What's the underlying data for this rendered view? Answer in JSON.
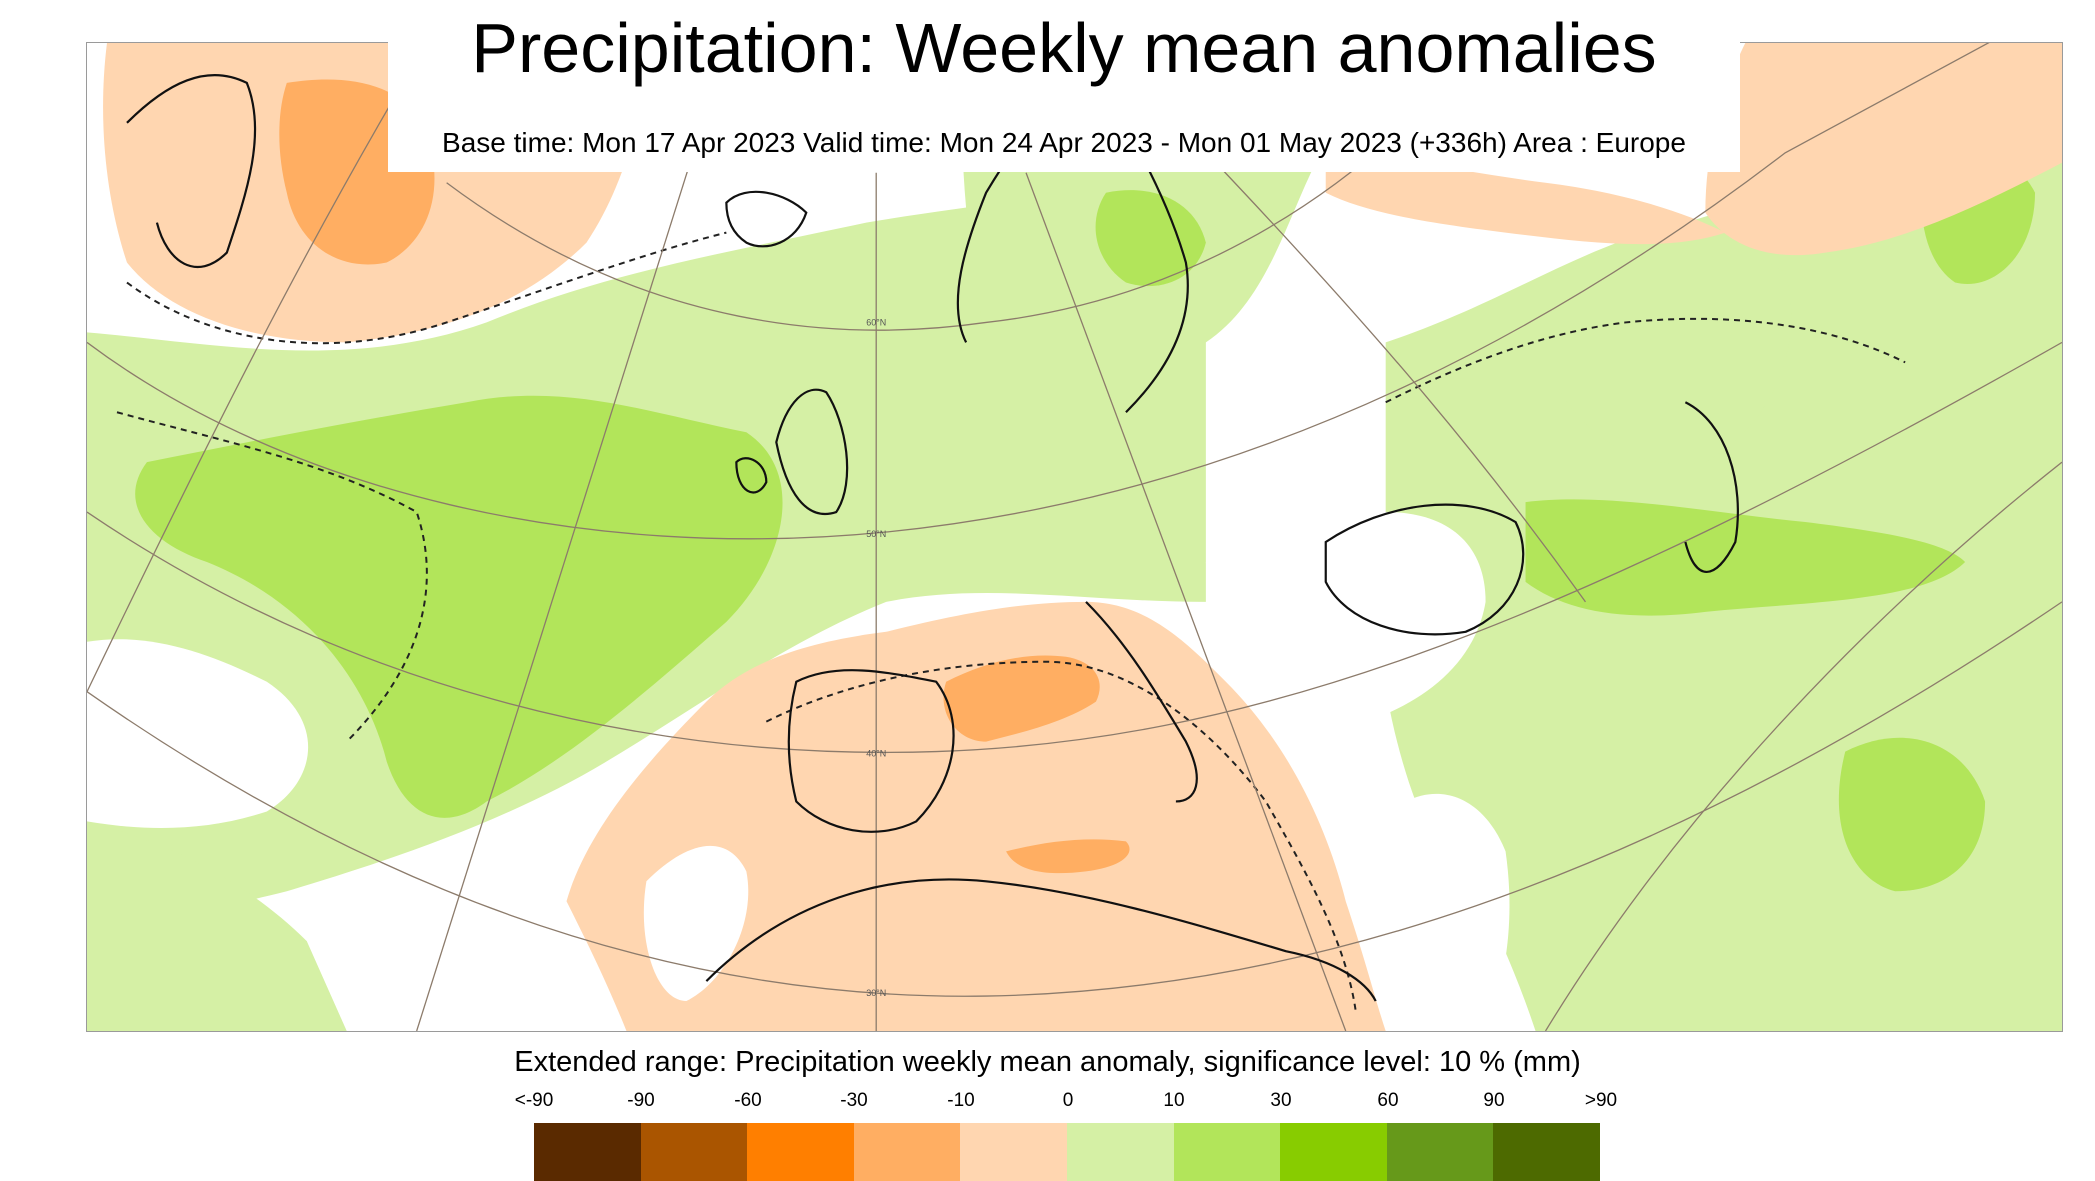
{
  "title": "Precipitation: Weekly mean anomalies",
  "subtitle": "Base time: Mon 17 Apr 2023 Valid time: Mon 24 Apr 2023 - Mon 01 May 2023 (+336h) Area : Europe",
  "legend": {
    "title": "Extended range: Precipitation weekly mean anomaly, significance level: 10 % (mm)",
    "tick_labels": [
      "<-90",
      "-90",
      "-60",
      "-30",
      "-10",
      "0",
      "10",
      "30",
      "60",
      "90",
      ">90"
    ],
    "colors": [
      "#5a2a00",
      "#aa5500",
      "#ff7f00",
      "#ffae62",
      "#ffd6b0",
      "#d5f0a5",
      "#b2e55a",
      "#88cc00",
      "#66991a",
      "#4d6a00"
    ]
  },
  "map": {
    "latitude_labels": [
      "60°N",
      "50°N",
      "40°N",
      "30°N"
    ],
    "colors": {
      "dry_light": "#ffd6b0",
      "dry_medium": "#ffae62",
      "wet_light": "#d5f0a5",
      "wet_medium": "#b2e55a",
      "wet_strong": "#88cc00",
      "coast": "#111111",
      "graticule": "#8c7b6b"
    }
  }
}
